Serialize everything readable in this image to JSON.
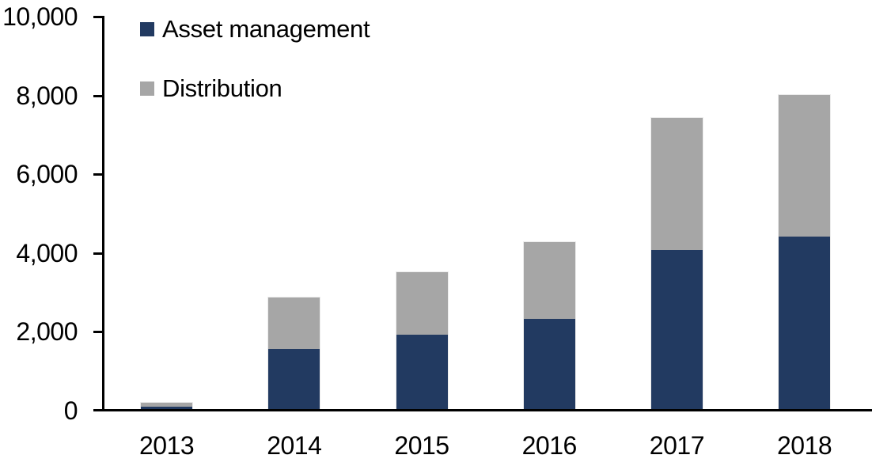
{
  "chart_data": {
    "type": "bar",
    "stacked": true,
    "title": "",
    "xlabel": "",
    "ylabel": "",
    "categories": [
      "2013",
      "2014",
      "2015",
      "2016",
      "2017",
      "2018"
    ],
    "series": [
      {
        "name": "Asset management",
        "color": "#223A61",
        "values": [
          80,
          1550,
          1900,
          2300,
          4050,
          4400
        ]
      },
      {
        "name": "Distribution",
        "color": "#A6A6A6",
        "values": [
          100,
          1300,
          1600,
          1950,
          3350,
          3600
        ]
      }
    ],
    "totals": [
      180,
      2850,
      3500,
      4250,
      7400,
      8000
    ],
    "ylim": [
      0,
      10000
    ],
    "y_ticks": [
      {
        "value": 0,
        "label": "0"
      },
      {
        "value": 2000,
        "label": "2,000"
      },
      {
        "value": 4000,
        "label": "4,000"
      },
      {
        "value": 6000,
        "label": "6,000"
      },
      {
        "value": 8000,
        "label": "8,000"
      },
      {
        "value": 10000,
        "label": "10,000"
      }
    ],
    "grid": false,
    "legend_position": "top-left",
    "axis_color": "#000000",
    "background_color": "#FFFFFF"
  }
}
